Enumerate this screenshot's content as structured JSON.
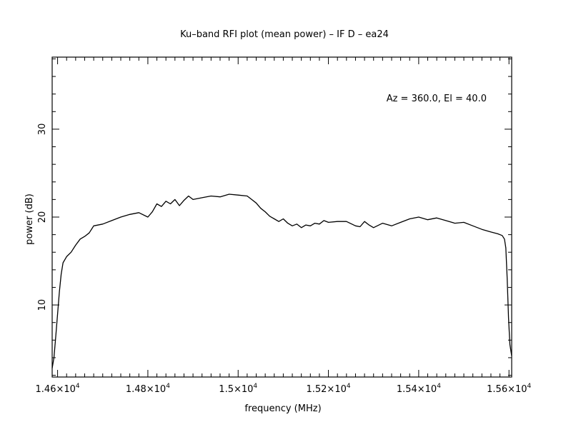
{
  "chart_data": {
    "type": "line",
    "title": "Ku–band RFI plot (mean power) – IF D – ea24",
    "xlabel": "frequency (MHz)",
    "ylabel": "power (dB)",
    "annotation": "Az = 360.0, El = 40.0",
    "xlim": [
      14588,
      15606
    ],
    "ylim": [
      1.8,
      38.2
    ],
    "x_ticks": [
      {
        "value": 14600,
        "label_base": "1.46×10",
        "label_exp": "4"
      },
      {
        "value": 14800,
        "label_base": "1.48×10",
        "label_exp": "4"
      },
      {
        "value": 15000,
        "label_base": "1.5×10",
        "label_exp": "4"
      },
      {
        "value": 15200,
        "label_base": "1.52×10",
        "label_exp": "4"
      },
      {
        "value": 15400,
        "label_base": "1.54×10",
        "label_exp": "4"
      },
      {
        "value": 15600,
        "label_base": "1.56×10",
        "label_exp": "4"
      }
    ],
    "y_ticks": [
      {
        "value": 10,
        "label": "10"
      },
      {
        "value": 20,
        "label": "20"
      },
      {
        "value": 30,
        "label": "30"
      }
    ],
    "x_minor_step": 20,
    "y_minor_step": 2,
    "grid": false,
    "line_color": "#000000",
    "series": [
      {
        "x": [
          14588,
          14592,
          14596,
          14600,
          14604,
          14608,
          14612,
          14620,
          14630,
          14640,
          14650,
          14660,
          14670,
          14680,
          14700,
          14720,
          14740,
          14760,
          14780,
          14800,
          14810,
          14820,
          14830,
          14840,
          14850,
          14860,
          14870,
          14880,
          14890,
          14900,
          14920,
          14940,
          14960,
          14980,
          15000,
          15020,
          15030,
          15040,
          15050,
          15060,
          15070,
          15080,
          15090,
          15100,
          15110,
          15120,
          15130,
          15140,
          15150,
          15160,
          15170,
          15180,
          15190,
          15200,
          15220,
          15240,
          15260,
          15270,
          15280,
          15290,
          15300,
          15320,
          15340,
          15360,
          15380,
          15400,
          15420,
          15440,
          15460,
          15480,
          15500,
          15520,
          15540,
          15560,
          15575,
          15585,
          15590,
          15593,
          15596,
          15599,
          15602,
          15606
        ],
        "y": [
          2.8,
          4.0,
          6.5,
          9.0,
          11.5,
          13.5,
          14.8,
          15.5,
          16.0,
          16.8,
          17.5,
          17.8,
          18.2,
          19.0,
          19.2,
          19.6,
          20.0,
          20.3,
          20.5,
          20.0,
          20.6,
          21.5,
          21.2,
          21.8,
          21.5,
          22.0,
          21.3,
          21.9,
          22.4,
          22.0,
          22.2,
          22.4,
          22.3,
          22.6,
          22.5,
          22.4,
          22.0,
          21.6,
          21.0,
          20.6,
          20.1,
          19.8,
          19.5,
          19.8,
          19.3,
          19.0,
          19.2,
          18.8,
          19.1,
          19.0,
          19.3,
          19.2,
          19.6,
          19.4,
          19.5,
          19.5,
          19.0,
          18.9,
          19.5,
          19.1,
          18.8,
          19.3,
          19.0,
          19.4,
          19.8,
          20.0,
          19.7,
          19.9,
          19.6,
          19.3,
          19.4,
          19.0,
          18.6,
          18.3,
          18.1,
          17.9,
          17.5,
          16.5,
          13.0,
          8.5,
          5.5,
          4.2
        ]
      }
    ]
  }
}
